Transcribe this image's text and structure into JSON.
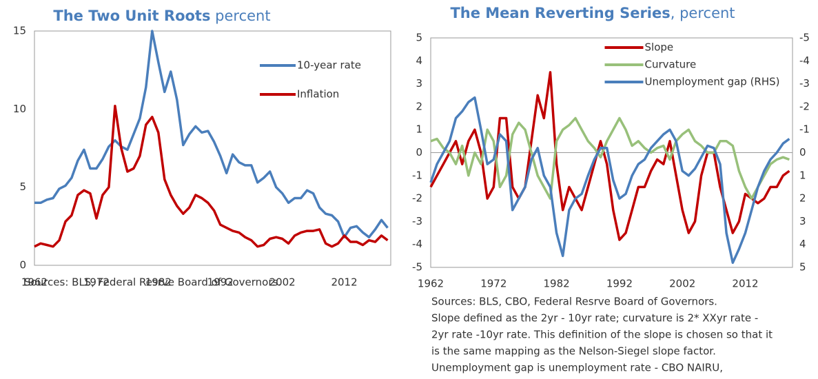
{
  "chart_data": [
    {
      "type": "line",
      "title": "The Two Unit Roots",
      "subtitle": "percent",
      "x": [
        1962,
        1963,
        1964,
        1965,
        1966,
        1967,
        1968,
        1969,
        1970,
        1971,
        1972,
        1973,
        1974,
        1975,
        1976,
        1977,
        1978,
        1979,
        1980,
        1981,
        1982,
        1983,
        1984,
        1985,
        1986,
        1987,
        1988,
        1989,
        1990,
        1991,
        1992,
        1993,
        1994,
        1995,
        1996,
        1997,
        1998,
        1999,
        2000,
        2001,
        2002,
        2003,
        2004,
        2005,
        2006,
        2007,
        2008,
        2009,
        2010,
        2011,
        2012,
        2013,
        2014,
        2015,
        2016,
        2017,
        2018,
        2019
      ],
      "series": [
        {
          "name": "10-year rate",
          "color": "#4a7ebb",
          "values": [
            4.0,
            4.0,
            4.2,
            4.3,
            4.9,
            5.1,
            5.6,
            6.7,
            7.4,
            6.2,
            6.2,
            6.8,
            7.6,
            8.0,
            7.6,
            7.4,
            8.4,
            9.4,
            11.4,
            15.0,
            13.0,
            11.1,
            12.4,
            10.6,
            7.7,
            8.4,
            8.9,
            8.5,
            8.6,
            7.9,
            7.0,
            5.9,
            7.1,
            6.6,
            6.4,
            6.4,
            5.3,
            5.6,
            6.0,
            5.0,
            4.6,
            4.0,
            4.3,
            4.3,
            4.8,
            4.6,
            3.7,
            3.3,
            3.2,
            2.8,
            1.8,
            2.4,
            2.5,
            2.1,
            1.8,
            2.3,
            2.9,
            2.4
          ]
        },
        {
          "name": "Inflation",
          "color": "#c00000",
          "values": [
            1.2,
            1.4,
            1.3,
            1.2,
            1.6,
            2.8,
            3.2,
            4.5,
            4.8,
            4.6,
            3.0,
            4.5,
            5.0,
            10.2,
            7.5,
            6.0,
            6.2,
            7.0,
            9.0,
            9.5,
            8.5,
            5.5,
            4.5,
            3.8,
            3.3,
            3.7,
            4.5,
            4.3,
            4.0,
            3.5,
            2.6,
            2.4,
            2.2,
            2.1,
            1.8,
            1.6,
            1.2,
            1.3,
            1.7,
            1.8,
            1.7,
            1.4,
            1.9,
            2.1,
            2.2,
            2.2,
            2.3,
            1.4,
            1.2,
            1.4,
            1.9,
            1.5,
            1.5,
            1.3,
            1.6,
            1.5,
            1.9,
            1.6
          ]
        }
      ],
      "xlim": [
        1962,
        2019.5
      ],
      "xticks": [
        1962,
        1972,
        1982,
        1992,
        2002,
        2012
      ],
      "ylim": [
        0,
        15
      ],
      "yticks": [
        0,
        5,
        10,
        15
      ],
      "legend": "upper right",
      "grid": false,
      "notes": [
        "Sources: BLS, Federal Resrve Board of Governors."
      ]
    },
    {
      "type": "line",
      "title": "The Mean Reverting Series",
      "subtitle": ", percent",
      "x": [
        1962,
        1963,
        1964,
        1965,
        1966,
        1967,
        1968,
        1969,
        1970,
        1971,
        1972,
        1973,
        1974,
        1975,
        1976,
        1977,
        1978,
        1979,
        1980,
        1981,
        1982,
        1983,
        1984,
        1985,
        1986,
        1987,
        1988,
        1989,
        1990,
        1991,
        1992,
        1993,
        1994,
        1995,
        1996,
        1997,
        1998,
        1999,
        2000,
        2001,
        2002,
        2003,
        2004,
        2005,
        2006,
        2007,
        2008,
        2009,
        2010,
        2011,
        2012,
        2013,
        2014,
        2015,
        2016,
        2017,
        2018,
        2019
      ],
      "series": [
        {
          "name": "Slope",
          "color": "#c00000",
          "values": [
            -1.5,
            -1.0,
            -0.5,
            0,
            0.5,
            -0.5,
            0.5,
            1.0,
            0,
            -2.0,
            -1.5,
            1.5,
            1.5,
            -1.5,
            -2.0,
            -1.5,
            0.5,
            2.5,
            1.5,
            3.5,
            -0.5,
            -2.5,
            -1.5,
            -2.0,
            -2.5,
            -1.5,
            -0.5,
            0.5,
            -0.5,
            -2.5,
            -3.8,
            -3.5,
            -2.5,
            -1.5,
            -1.5,
            -0.8,
            -0.3,
            -0.5,
            0.5,
            -1.0,
            -2.5,
            -3.5,
            -3.0,
            -1.0,
            0,
            0,
            -1.5,
            -2.5,
            -3.5,
            -3.0,
            -1.8,
            -2.0,
            -2.2,
            -2.0,
            -1.5,
            -1.5,
            -1.0,
            -0.8
          ]
        },
        {
          "name": "Curvature",
          "color": "#98c07a",
          "values": [
            0.5,
            0.6,
            0.2,
            0,
            -0.5,
            0.3,
            -1.0,
            0,
            -0.5,
            1.0,
            0.5,
            -1.5,
            -1.0,
            0.8,
            1.3,
            1.0,
            0,
            -1.0,
            -1.5,
            -2.0,
            0.5,
            1.0,
            1.2,
            1.5,
            1.0,
            0.5,
            0.2,
            -0.2,
            0.5,
            1.0,
            1.5,
            1.0,
            0.3,
            0.5,
            0.2,
            0,
            0.2,
            0.3,
            -0.3,
            0.5,
            0.8,
            1.0,
            0.5,
            0.3,
            0,
            0,
            0.5,
            0.5,
            0.3,
            -0.8,
            -1.5,
            -2.0,
            -1.5,
            -1.0,
            -0.5,
            -0.3,
            -0.2,
            -0.3
          ]
        },
        {
          "name": "Unemployment gap (RHS)",
          "color": "#4a7ebb",
          "axis": "y2",
          "values": [
            1.3,
            0.5,
            0,
            -0.5,
            -1.5,
            -1.8,
            -2.2,
            -2.4,
            -1.0,
            0.5,
            0.3,
            -0.8,
            -0.5,
            2.5,
            2.0,
            1.5,
            0.3,
            -0.2,
            1.0,
            1.5,
            3.5,
            4.5,
            2.5,
            2.0,
            1.8,
            1.0,
            0.3,
            -0.2,
            -0.2,
            1.2,
            2.0,
            1.8,
            1.0,
            0.5,
            0.3,
            -0.2,
            -0.5,
            -0.8,
            -1.0,
            -0.5,
            0.8,
            1.0,
            0.7,
            0.2,
            -0.3,
            -0.2,
            0.5,
            3.5,
            4.8,
            4.2,
            3.5,
            2.5,
            1.5,
            0.8,
            0.3,
            0,
            -0.4,
            -0.6
          ]
        }
      ],
      "xlim": [
        1962,
        2019.5
      ],
      "xticks": [
        1962,
        1972,
        1982,
        1992,
        2002,
        2012
      ],
      "ylim": [
        -5,
        5
      ],
      "yticks": [
        -5,
        -4,
        -3,
        -2,
        -1,
        0,
        1,
        2,
        3,
        4,
        5
      ],
      "y2lim": [
        5,
        -5
      ],
      "y2ticks": [
        -5,
        -4,
        -3,
        -2,
        -1,
        0,
        1,
        2,
        3,
        4,
        5
      ],
      "legend": "upper center",
      "grid": false,
      "notes": [
        "Sources: BLS, CBO, Federal Resrve Board of Governors.",
        "Slope defined as the 2yr - 10yr rate; curvature is 2* XXyr rate -",
        "2yr rate -10yr rate. This definition of the slope is chosen so that it",
        "is the same mapping as the Nelson-Siegel slope factor.",
        "Unemployment gap is unemployment rate - CBO NAIRU,"
      ]
    }
  ]
}
